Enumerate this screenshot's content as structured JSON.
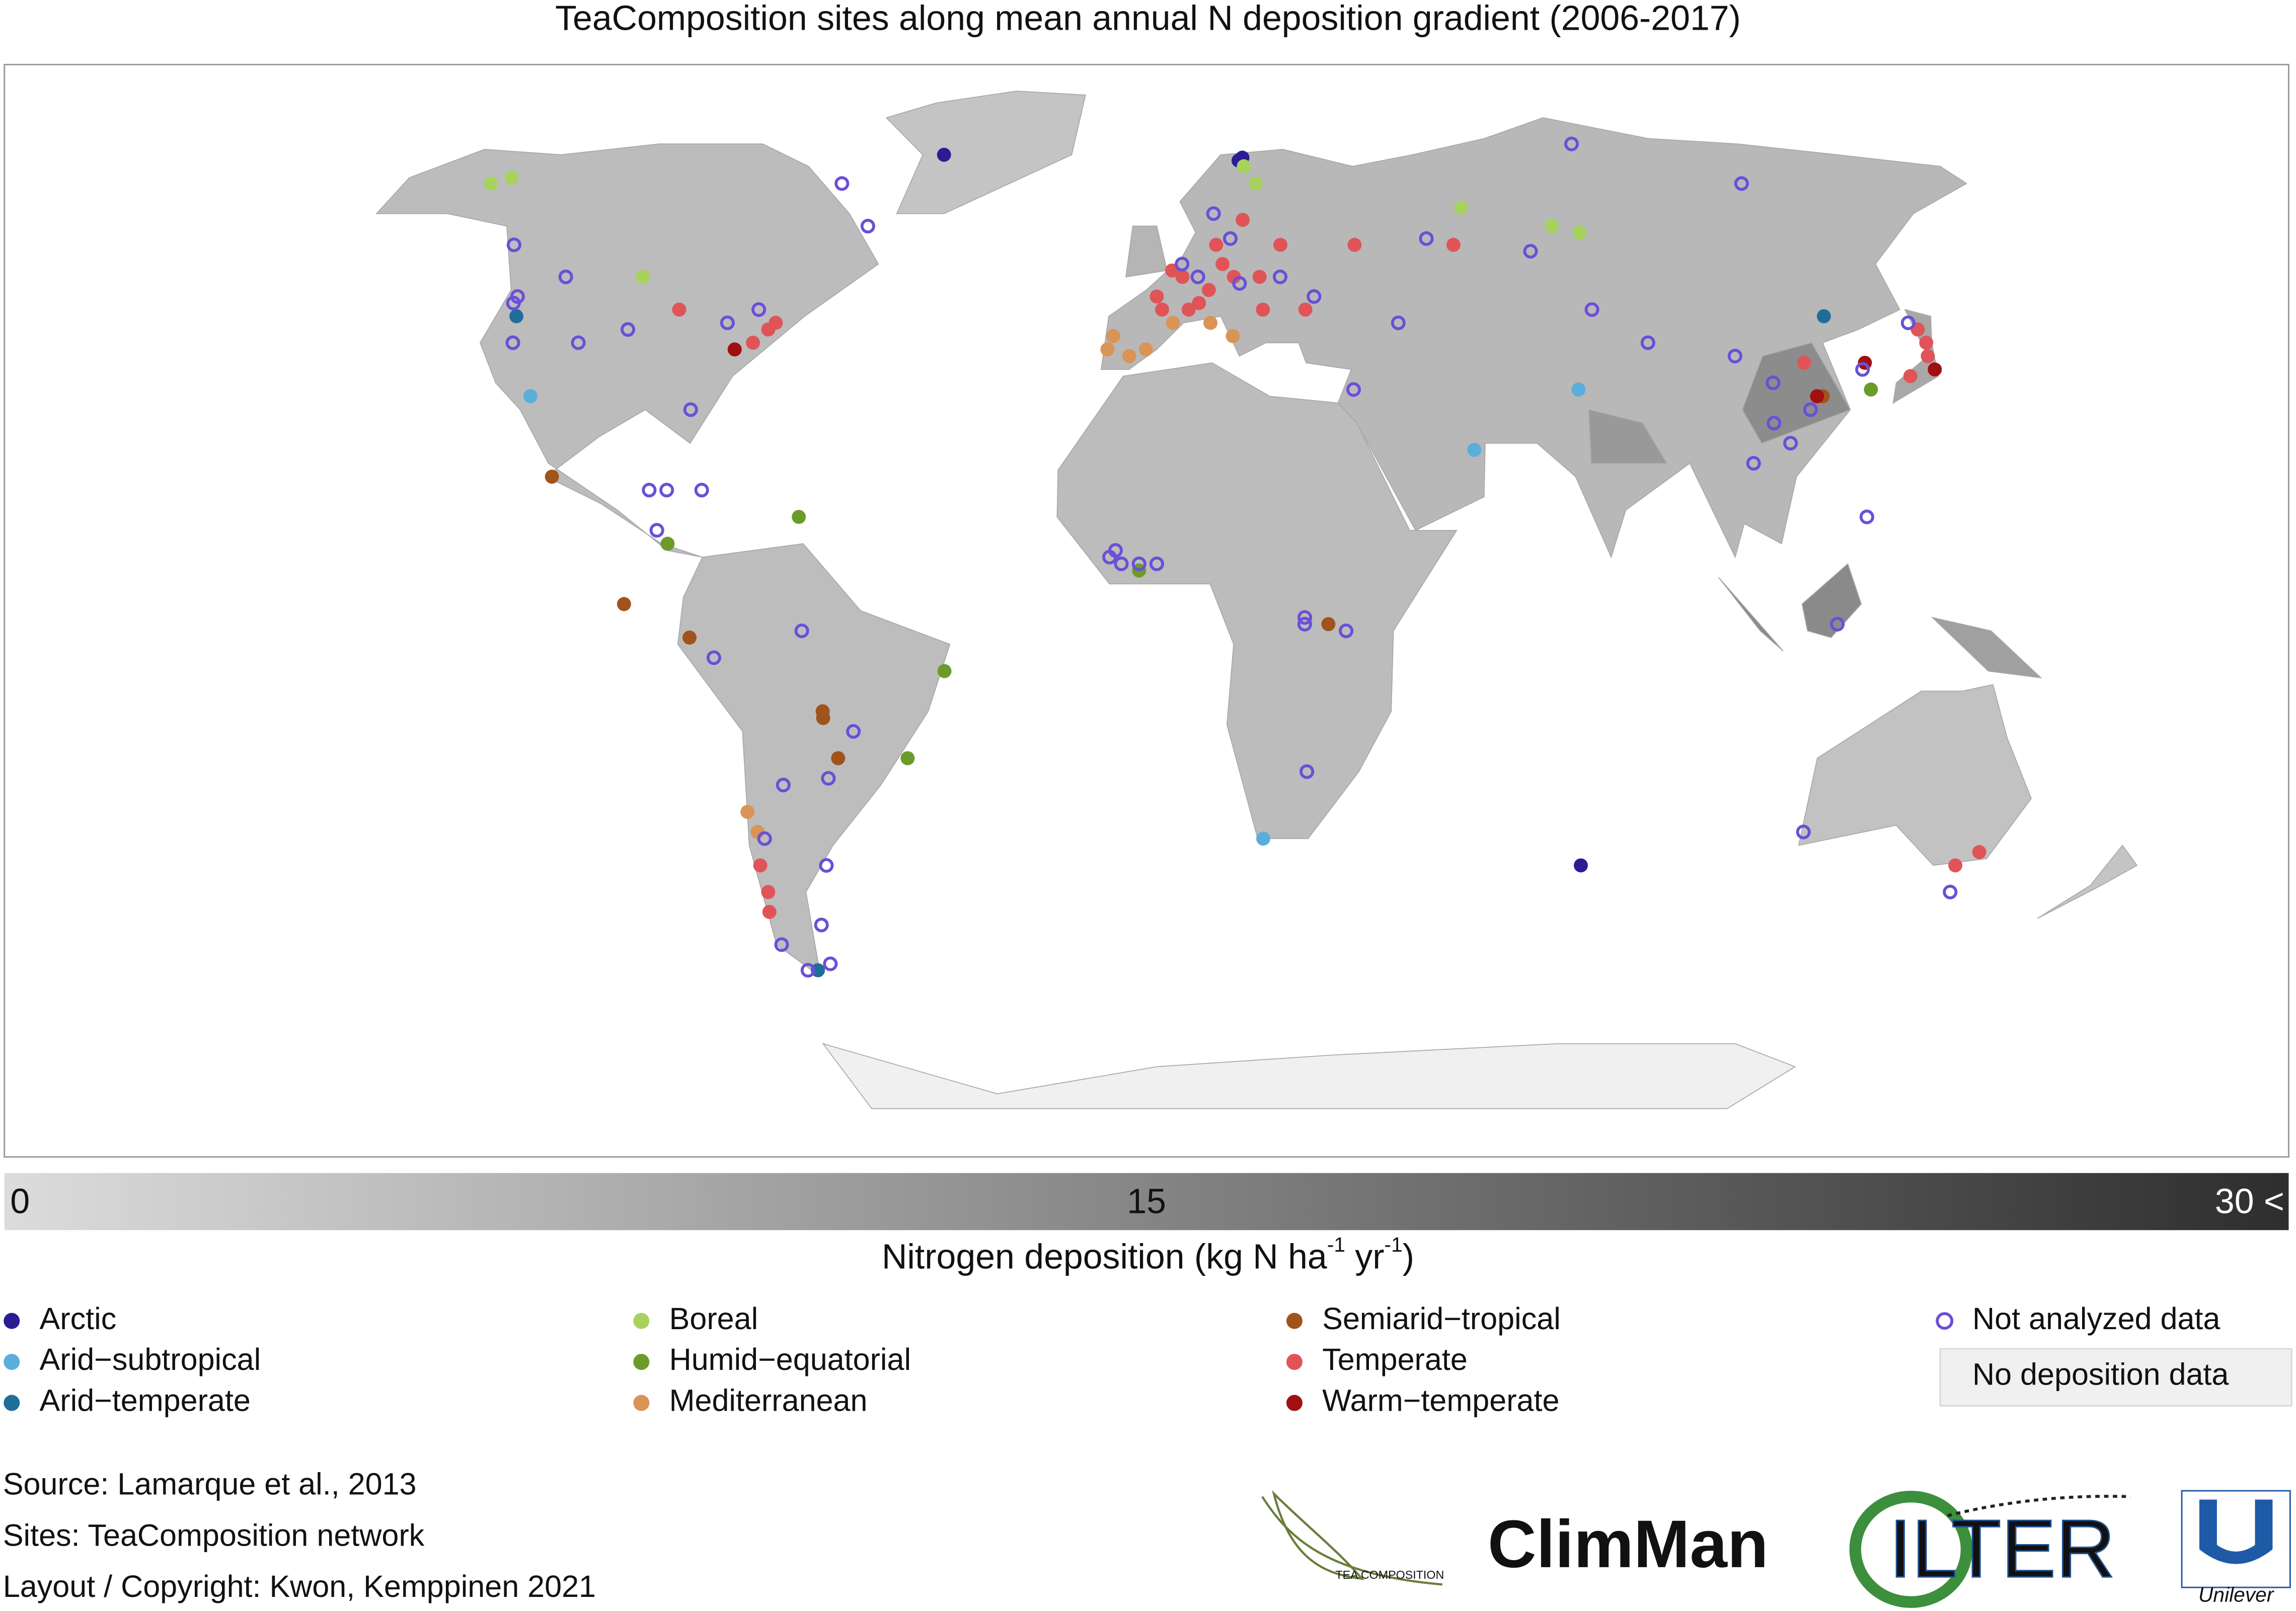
{
  "title": "TeaComposition sites along mean annual N deposition gradient (2006-2017)",
  "colorbar": {
    "colors": [
      "#dcdcdc",
      "#2e2e2e"
    ],
    "lim": [
      0,
      30
    ],
    "ticks": [
      0,
      15,
      {
        "value": 30,
        "label": "30 <"
      }
    ],
    "label": [
      "Nitrogen deposition (kg N ha",
      "-1",
      " yr",
      "-1",
      ")"
    ]
  },
  "legend": [
    {
      "name": "Arctic",
      "color": "#2b1c94",
      "sites": [
        [
          -50,
          70
        ],
        [
          19,
          69
        ],
        [
          20,
          69.5
        ],
        [
          77,
          -38
        ]
      ]
    },
    {
      "name": "Arid−subtropical",
      "color": "#5aaedc",
      "sites": [
        [
          -111,
          32
        ],
        [
          55,
          24
        ],
        [
          19,
          -34
        ],
        [
          75,
          33
        ]
      ]
    },
    {
      "name": "Arid−temperate",
      "color": "#1f6e9a",
      "sites": [
        [
          -120,
          44
        ],
        [
          -68,
          -54
        ],
        [
          125,
          44
        ]
      ]
    },
    {
      "name": "Boreal",
      "color": "#a8d25e",
      "sites": [
        [
          -148,
          65
        ],
        [
          -145,
          66
        ],
        [
          -100,
          50
        ],
        [
          20,
          68
        ],
        [
          22,
          65
        ],
        [
          65,
          61
        ],
        [
          82,
          58
        ],
        [
          87,
          57
        ]
      ]
    },
    {
      "name": "Humid−equatorial",
      "color": "#6b9c2a",
      "sites": [
        [
          -36,
          -9
        ],
        [
          -43,
          -22
        ],
        [
          -83,
          10
        ],
        [
          -61,
          14
        ],
        [
          -3,
          6
        ],
        [
          127,
          33
        ]
      ]
    },
    {
      "name": "Mediterranean",
      "color": "#d99456",
      "sites": [
        [
          -9,
          39
        ],
        [
          -8,
          41
        ],
        [
          -5,
          38
        ],
        [
          -2,
          39
        ],
        [
          3,
          43
        ],
        [
          10,
          43
        ],
        [
          -72,
          -30
        ],
        [
          -71,
          -33
        ],
        [
          14,
          41
        ]
      ]
    },
    {
      "name": "Semiarid−tropical",
      "color": "#a0531a",
      "sites": [
        [
          -104,
          20
        ],
        [
          -90,
          1
        ],
        [
          -79,
          -4
        ],
        [
          -57,
          -15
        ],
        [
          -57,
          -16
        ],
        [
          -55,
          -22
        ],
        [
          29,
          -2
        ],
        [
          118,
          32
        ]
      ]
    },
    {
      "name": "Temperate",
      "color": "#e05458",
      "sites": [
        [
          -90,
          45
        ],
        [
          -72,
          42
        ],
        [
          -71,
          43
        ],
        [
          -74,
          40
        ],
        [
          0,
          47
        ],
        [
          5,
          50
        ],
        [
          10,
          48
        ],
        [
          13,
          52
        ],
        [
          15,
          50
        ],
        [
          8,
          46
        ],
        [
          20,
          50
        ],
        [
          25,
          55
        ],
        [
          40,
          55
        ],
        [
          60,
          55
        ],
        [
          1,
          45
        ],
        [
          -72,
          -38
        ],
        [
          -72,
          -42
        ],
        [
          -73,
          -45
        ],
        [
          145,
          -38
        ],
        [
          148,
          -36
        ],
        [
          140,
          38
        ],
        [
          141,
          40
        ],
        [
          141,
          42
        ],
        [
          135,
          35
        ],
        [
          117,
          37
        ],
        [
          12,
          55
        ],
        [
          18,
          59
        ],
        [
          3,
          51
        ],
        [
          6,
          45
        ],
        [
          20,
          45
        ],
        [
          28,
          45
        ]
      ]
    },
    {
      "name": "Warm−temperate",
      "color": "#a01010",
      "sites": [
        [
          -77,
          39
        ],
        [
          128,
          37
        ],
        [
          140,
          36
        ],
        [
          117,
          32
        ]
      ]
    }
  ],
  "not_analyzed": {
    "name": "Not analyzed data",
    "color": "#6a4fd8",
    "sites": [
      [
        -122,
        47
      ],
      [
        -122,
        46
      ],
      [
        -118,
        40
      ],
      [
        -106,
        40
      ],
      [
        -98,
        42
      ],
      [
        -82,
        30
      ],
      [
        -87,
        18
      ],
      [
        -84,
        18
      ],
      [
        -85,
        12
      ],
      [
        -78,
        18
      ],
      [
        -75,
        -7
      ],
      [
        -60,
        -3
      ],
      [
        -52,
        -18
      ],
      [
        -57,
        -25
      ],
      [
        -60,
        -38
      ],
      [
        -64,
        -47
      ],
      [
        -65,
        -53
      ],
      [
        -70,
        -54
      ],
      [
        -73,
        -50
      ],
      [
        -65,
        -26
      ],
      [
        -70,
        -34
      ],
      [
        -8,
        8
      ],
      [
        -6,
        7
      ],
      [
        -7,
        9
      ],
      [
        -3,
        7
      ],
      [
        0,
        7
      ],
      [
        25,
        -2
      ],
      [
        25,
        -1
      ],
      [
        32,
        -3
      ],
      [
        26,
        -24
      ],
      [
        35,
        33
      ],
      [
        12,
        60
      ],
      [
        15,
        56
      ],
      [
        5,
        52
      ],
      [
        8,
        50
      ],
      [
        16,
        49
      ],
      [
        24,
        50
      ],
      [
        30,
        47
      ],
      [
        45,
        43
      ],
      [
        55,
        56
      ],
      [
        75,
        54
      ],
      [
        82,
        45
      ],
      [
        90,
        40
      ],
      [
        105,
        38
      ],
      [
        110,
        34
      ],
      [
        108,
        28
      ],
      [
        110,
        25
      ],
      [
        115,
        30
      ],
      [
        103,
        22
      ],
      [
        121,
        14
      ],
      [
        115,
        -33
      ],
      [
        147,
        -42
      ],
      [
        140,
        43
      ],
      [
        127,
        36
      ],
      [
        115,
        -2
      ],
      [
        130,
        65
      ],
      [
        100,
        72
      ],
      [
        -130,
        55
      ],
      [
        -75,
        45
      ],
      [
        -80,
        43
      ],
      [
        -115,
        50
      ],
      [
        -70,
        65
      ],
      [
        -60,
        58
      ]
    ]
  },
  "no_data": {
    "name": "No deposition data",
    "color": "#f0f0f0"
  },
  "notes": [
    "Source: Lamarque et al., 2013",
    "Sites: TeaComposition network",
    "Layout / Copyright: Kwon, Kemppinen 2021"
  ],
  "logos": [
    "TEA COMPOSITION",
    "ClimMan",
    "ILTER",
    "Unilever"
  ]
}
